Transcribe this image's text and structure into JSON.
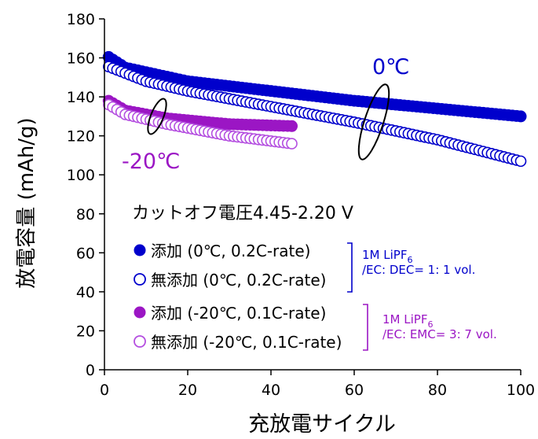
{
  "chart_data": {
    "type": "scatter",
    "xlabel": "充放電サイクル",
    "ylabel": "放電容量 (mAh/g)",
    "xlim": [
      0,
      100
    ],
    "ylim": [
      0,
      180
    ],
    "xticks": [
      0,
      20,
      40,
      60,
      80,
      100
    ],
    "yticks": [
      0,
      20,
      40,
      60,
      80,
      100,
      120,
      140,
      160,
      180
    ],
    "grid": false,
    "legend_position": "lower-left",
    "colors": {
      "blue": "#0000cc",
      "purple": "#9b16c4",
      "light_purple": "#b44ee0"
    },
    "annotations": {
      "condition": "カットオフ電圧4.45-2.20 V",
      "label_0c": "0℃",
      "label_m20c": "-20℃",
      "electrolyte_1_line1": "1M LiPF",
      "electrolyte_1_sub": "6",
      "electrolyte_1_line2": "/EC: DEC= 1: 1 vol.",
      "electrolyte_2_line1": "1M LiPF",
      "electrolyte_2_sub": "6",
      "electrolyte_2_line2": "/EC: EMC= 3: 7 vol."
    },
    "series": [
      {
        "name": "添加 (0℃, 0.2C-rate)",
        "marker": "filled",
        "color": "#0000cc",
        "cycles": 100,
        "curve": [
          [
            1,
            160.5
          ],
          [
            5,
            155
          ],
          [
            20,
            148
          ],
          [
            40,
            143
          ],
          [
            60,
            138
          ],
          [
            80,
            134
          ],
          [
            100,
            130
          ]
        ]
      },
      {
        "name": "無添加 (0℃, 0.2C-rate)",
        "marker": "open",
        "color": "#0000cc",
        "cycles": 100,
        "curve": [
          [
            1,
            155.5
          ],
          [
            10,
            148
          ],
          [
            20,
            143
          ],
          [
            40,
            135
          ],
          [
            60,
            127
          ],
          [
            80,
            118
          ],
          [
            100,
            107
          ]
        ]
      },
      {
        "name": "添加 (-20℃, 0.1C-rate)",
        "marker": "filled",
        "color": "#9b16c4",
        "cycles": 45,
        "curve": [
          [
            1,
            138
          ],
          [
            5,
            133
          ],
          [
            15,
            129
          ],
          [
            30,
            126
          ],
          [
            45,
            125
          ]
        ]
      },
      {
        "name": "無添加 (-20℃, 0.1C-rate)",
        "marker": "open",
        "color": "#b44ee0",
        "cycles": 45,
        "curve": [
          [
            1,
            136
          ],
          [
            5,
            131
          ],
          [
            15,
            126
          ],
          [
            30,
            120
          ],
          [
            45,
            116
          ]
        ]
      }
    ]
  }
}
